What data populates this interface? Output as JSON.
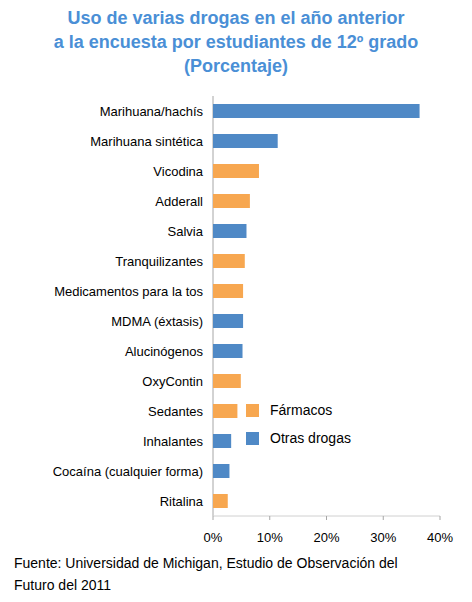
{
  "chart_data": {
    "type": "bar",
    "orientation": "horizontal",
    "title": "Uso de varias drogas en el año anterior\na la encuesta por estudiantes de 12º grado\n(Porcentaje)",
    "source": "Fuente: Universidad de Michigan, Estudio de Observación del\nFuturo del 2011",
    "categories": [
      "Marihuana/hachís",
      "Marihuana sintética",
      "Vicodina",
      "Adderall",
      "Salvia",
      "Tranquilizantes",
      "Medicamentos para la tos",
      "MDMA (éxtasis)",
      "Alucinógenos",
      "OxyContin",
      "Sedantes",
      "Inhalantes",
      "Cocaína (cualquier forma)",
      "Ritalina"
    ],
    "series": [
      {
        "name": "Fármacos",
        "color": "#f7a750",
        "values": [
          null,
          null,
          8.1,
          6.5,
          null,
          5.6,
          5.3,
          null,
          null,
          4.9,
          4.3,
          null,
          null,
          2.6
        ]
      },
      {
        "name": "Otras drogas",
        "color": "#4f89c6",
        "values": [
          36.4,
          11.4,
          null,
          null,
          5.9,
          null,
          null,
          5.3,
          5.2,
          null,
          null,
          3.2,
          2.9,
          null
        ]
      }
    ],
    "xlim": [
      0,
      40
    ],
    "xticks": [
      {
        "value": 0,
        "label": "0%"
      },
      {
        "value": 10,
        "label": "10%"
      },
      {
        "value": 20,
        "label": "20%"
      },
      {
        "value": 30,
        "label": "30%"
      },
      {
        "value": 40,
        "label": "40%"
      }
    ],
    "grid": false,
    "legend": "right"
  }
}
